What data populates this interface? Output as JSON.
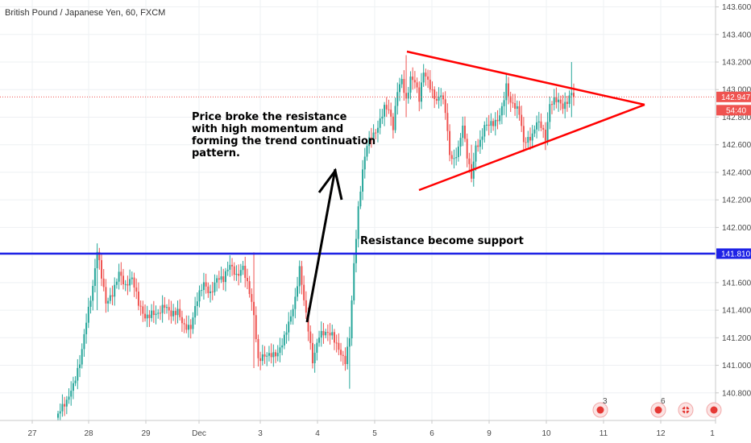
{
  "chart_data": {
    "type": "candlestick",
    "title": "British Pound / Japanese Yen, 60, FXCM",
    "ylim": [
      140.6,
      143.65
    ],
    "x_days": [
      "27",
      "28",
      "29",
      "Dec",
      "3",
      "4",
      "5",
      "6",
      "9",
      "10",
      "11",
      "12",
      "1"
    ],
    "y_ticks": [
      "143.600",
      "143.400",
      "143.200",
      "143.000",
      "142.800",
      "142.600",
      "142.400",
      "142.200",
      "142.000",
      "141.800",
      "141.600",
      "141.400",
      "141.200",
      "141.000",
      "140.800"
    ],
    "current_price": {
      "value": 142.947,
      "label": "142.947",
      "countdown": "54:40",
      "color": "#ef5350"
    },
    "support_line": {
      "value": 141.81,
      "label": "141.810",
      "color": "#1e22e6"
    },
    "grid": true,
    "colors": {
      "up": "#26a69a",
      "down": "#ef5350",
      "trend": "#ff0000"
    },
    "annotations": [
      {
        "lines": [
          "Price broke the resistance",
          "with high momentum and",
          "forming the trend continuation",
          "pattern."
        ]
      },
      {
        "lines": [
          "Resistance become support"
        ]
      }
    ],
    "event_markers": [
      {
        "icon": "economic-event-icon",
        "count": "3"
      },
      {
        "icon": "economic-event-icon",
        "count": "6"
      },
      {
        "icon": "uk-flag-event-icon",
        "count": ""
      },
      {
        "icon": "economic-event-icon",
        "count": ""
      }
    ],
    "path": [
      [
        0,
        140.65
      ],
      [
        4,
        140.7
      ],
      [
        7,
        140.85
      ],
      [
        10,
        141.05
      ],
      [
        13,
        141.35
      ],
      [
        16,
        141.55
      ],
      [
        18,
        141.8
      ],
      [
        20,
        141.62
      ],
      [
        22,
        141.45
      ],
      [
        25,
        141.55
      ],
      [
        28,
        141.7
      ],
      [
        31,
        141.55
      ],
      [
        34,
        141.6
      ],
      [
        37,
        141.45
      ],
      [
        40,
        141.38
      ],
      [
        43,
        141.4
      ],
      [
        46,
        141.35
      ],
      [
        49,
        141.4
      ],
      [
        52,
        141.37
      ],
      [
        55,
        141.43
      ],
      [
        58,
        141.3
      ],
      [
        61,
        141.25
      ],
      [
        64,
        141.45
      ],
      [
        67,
        141.6
      ],
      [
        70,
        141.55
      ],
      [
        73,
        141.65
      ],
      [
        76,
        141.6
      ],
      [
        79,
        141.7
      ],
      [
        82,
        141.65
      ],
      [
        85,
        141.75
      ],
      [
        88,
        141.55
      ],
      [
        90,
        141.35
      ],
      [
        92,
        141.0
      ],
      [
        95,
        141.05
      ],
      [
        98,
        141.1
      ],
      [
        101,
        141.12
      ],
      [
        104,
        141.2
      ],
      [
        107,
        141.32
      ],
      [
        109,
        141.45
      ],
      [
        111,
        141.7
      ],
      [
        113,
        141.5
      ],
      [
        115,
        141.3
      ],
      [
        117,
        141.05
      ],
      [
        120,
        141.2
      ],
      [
        123,
        141.2
      ],
      [
        126,
        141.22
      ],
      [
        129,
        141.15
      ],
      [
        132,
        141.05
      ],
      [
        134,
        141.2
      ],
      [
        136,
        141.7
      ],
      [
        138,
        142.1
      ],
      [
        140,
        142.4
      ],
      [
        142,
        142.62
      ],
      [
        144,
        142.7
      ],
      [
        146,
        142.72
      ],
      [
        148,
        142.78
      ],
      [
        150,
        142.85
      ],
      [
        152,
        142.82
      ],
      [
        154,
        142.7
      ],
      [
        156,
        143.0
      ],
      [
        158,
        143.1
      ],
      [
        160,
        142.95
      ],
      [
        162,
        143.1
      ],
      [
        164,
        143.05
      ],
      [
        166,
        142.9
      ],
      [
        168,
        143.1
      ],
      [
        170,
        143.05
      ],
      [
        172,
        143.0
      ],
      [
        174,
        142.95
      ],
      [
        176,
        143.0
      ],
      [
        178,
        142.85
      ],
      [
        180,
        142.5
      ],
      [
        182,
        142.45
      ],
      [
        184,
        142.55
      ],
      [
        186,
        142.75
      ],
      [
        188,
        142.55
      ],
      [
        190,
        142.4
      ],
      [
        192,
        142.6
      ],
      [
        194,
        142.6
      ],
      [
        196,
        142.7
      ],
      [
        198,
        142.72
      ],
      [
        200,
        142.75
      ],
      [
        202,
        142.8
      ],
      [
        204,
        142.9
      ],
      [
        206,
        143.05
      ],
      [
        208,
        142.9
      ],
      [
        210,
        142.85
      ],
      [
        212,
        142.8
      ],
      [
        214,
        142.6
      ],
      [
        216,
        142.65
      ],
      [
        218,
        142.7
      ],
      [
        220,
        142.8
      ],
      [
        222,
        142.75
      ],
      [
        224,
        142.62
      ],
      [
        226,
        142.85
      ],
      [
        228,
        142.9
      ],
      [
        230,
        142.92
      ],
      [
        232,
        142.9
      ],
      [
        234,
        142.95
      ],
      [
        236,
        143.0
      ],
      [
        237,
        142.96
      ]
    ],
    "wick_spikes": [
      {
        "i": 18,
        "high": 141.85,
        "low": 141.4
      },
      {
        "i": 90,
        "high": 141.82,
        "low": 140.98
      },
      {
        "i": 134,
        "high": 141.28,
        "low": 140.83
      },
      {
        "i": 160,
        "high": 143.25,
        "low": 142.8
      },
      {
        "i": 190,
        "high": 142.6,
        "low": 142.38
      },
      {
        "i": 206,
        "high": 143.1,
        "low": 142.8
      },
      {
        "i": 236,
        "high": 143.2,
        "low": 142.8
      }
    ]
  },
  "annotations_geom": {}
}
